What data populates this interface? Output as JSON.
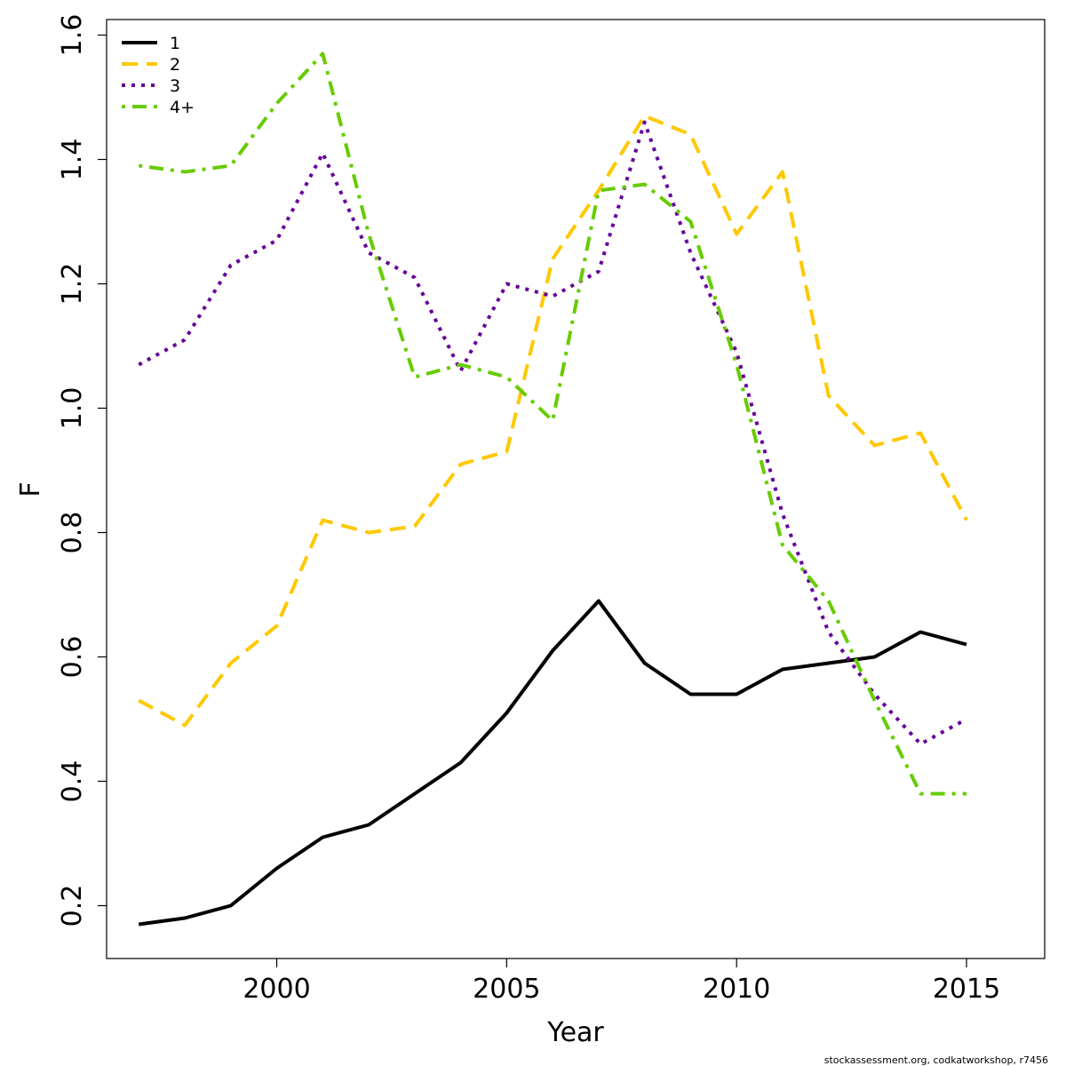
{
  "chart_data": {
    "type": "line",
    "xlabel": "Year",
    "ylabel": "F",
    "xlim": [
      1996.3,
      2016.7
    ],
    "ylim": [
      0.115,
      1.625
    ],
    "x_ticks": [
      2000,
      2005,
      2010,
      2015
    ],
    "y_ticks": [
      0.2,
      0.4,
      0.6,
      0.8,
      1.0,
      1.2,
      1.4,
      1.6
    ],
    "y_tick_labels": [
      "0.2",
      "0.4",
      "0.6",
      "0.8",
      "1.0",
      "1.2",
      "1.4",
      "1.6"
    ],
    "grid": false,
    "legend_position": "top-left",
    "x": [
      1997,
      1998,
      1999,
      2000,
      2001,
      2002,
      2003,
      2004,
      2005,
      2006,
      2007,
      2008,
      2009,
      2010,
      2011,
      2012,
      2013,
      2014,
      2015
    ],
    "series": [
      {
        "name": "1",
        "color": "#000000",
        "dash": "solid",
        "values": [
          0.17,
          0.18,
          0.2,
          0.26,
          0.31,
          0.33,
          0.38,
          0.43,
          0.51,
          0.61,
          0.69,
          0.59,
          0.54,
          0.54,
          0.58,
          0.59,
          0.6,
          0.64,
          0.62
        ]
      },
      {
        "name": "2",
        "color": "#FFC800",
        "dash": "dashed",
        "values": [
          0.53,
          0.49,
          0.59,
          0.65,
          0.82,
          0.8,
          0.81,
          0.91,
          0.93,
          1.24,
          1.35,
          1.47,
          1.44,
          1.28,
          1.38,
          1.02,
          0.94,
          0.96,
          0.82
        ]
      },
      {
        "name": "3",
        "color": "#660099",
        "dash": "dotted",
        "values": [
          1.07,
          1.11,
          1.23,
          1.27,
          1.41,
          1.25,
          1.21,
          1.06,
          1.2,
          1.18,
          1.22,
          1.46,
          1.25,
          1.09,
          0.83,
          0.64,
          0.54,
          0.46,
          0.5
        ]
      },
      {
        "name": "4+",
        "color": "#66CC00",
        "dash": "dotdash",
        "values": [
          1.39,
          1.38,
          1.39,
          1.49,
          1.57,
          1.28,
          1.05,
          1.07,
          1.05,
          0.98,
          1.35,
          1.36,
          1.3,
          1.07,
          0.78,
          0.69,
          0.53,
          0.38,
          0.38
        ]
      }
    ]
  },
  "footer_text": "stockassessment.org, codkatworkshop, r7456"
}
